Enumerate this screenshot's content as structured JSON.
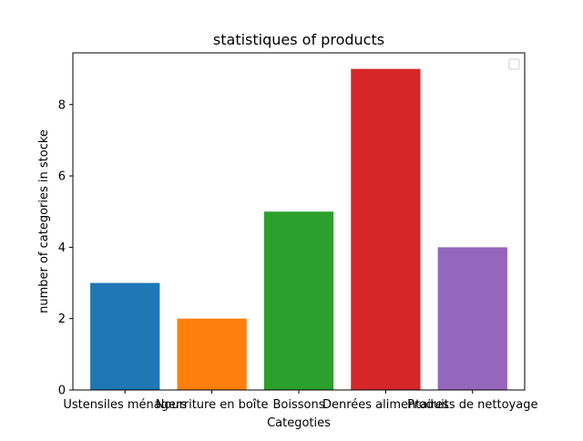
{
  "chart_data": {
    "type": "bar",
    "title": "statistiques of products",
    "xlabel": "Categoties",
    "ylabel": "number of categories in stocke",
    "categories": [
      "Ustensiles ménagers",
      "Nourriture en boîte",
      "Boissons",
      "Denrées alimentaires",
      "Produits de nettoyage"
    ],
    "values": [
      3,
      2,
      5,
      9,
      4
    ],
    "colors": [
      "#1f77b4",
      "#ff7f0e",
      "#2ca02c",
      "#d62728",
      "#9467bd"
    ],
    "ylim": [
      0,
      9.45
    ],
    "yticks": [
      0,
      2,
      4,
      6,
      8
    ],
    "grid": false,
    "legend": {
      "placement": "top-right",
      "entries": []
    }
  }
}
